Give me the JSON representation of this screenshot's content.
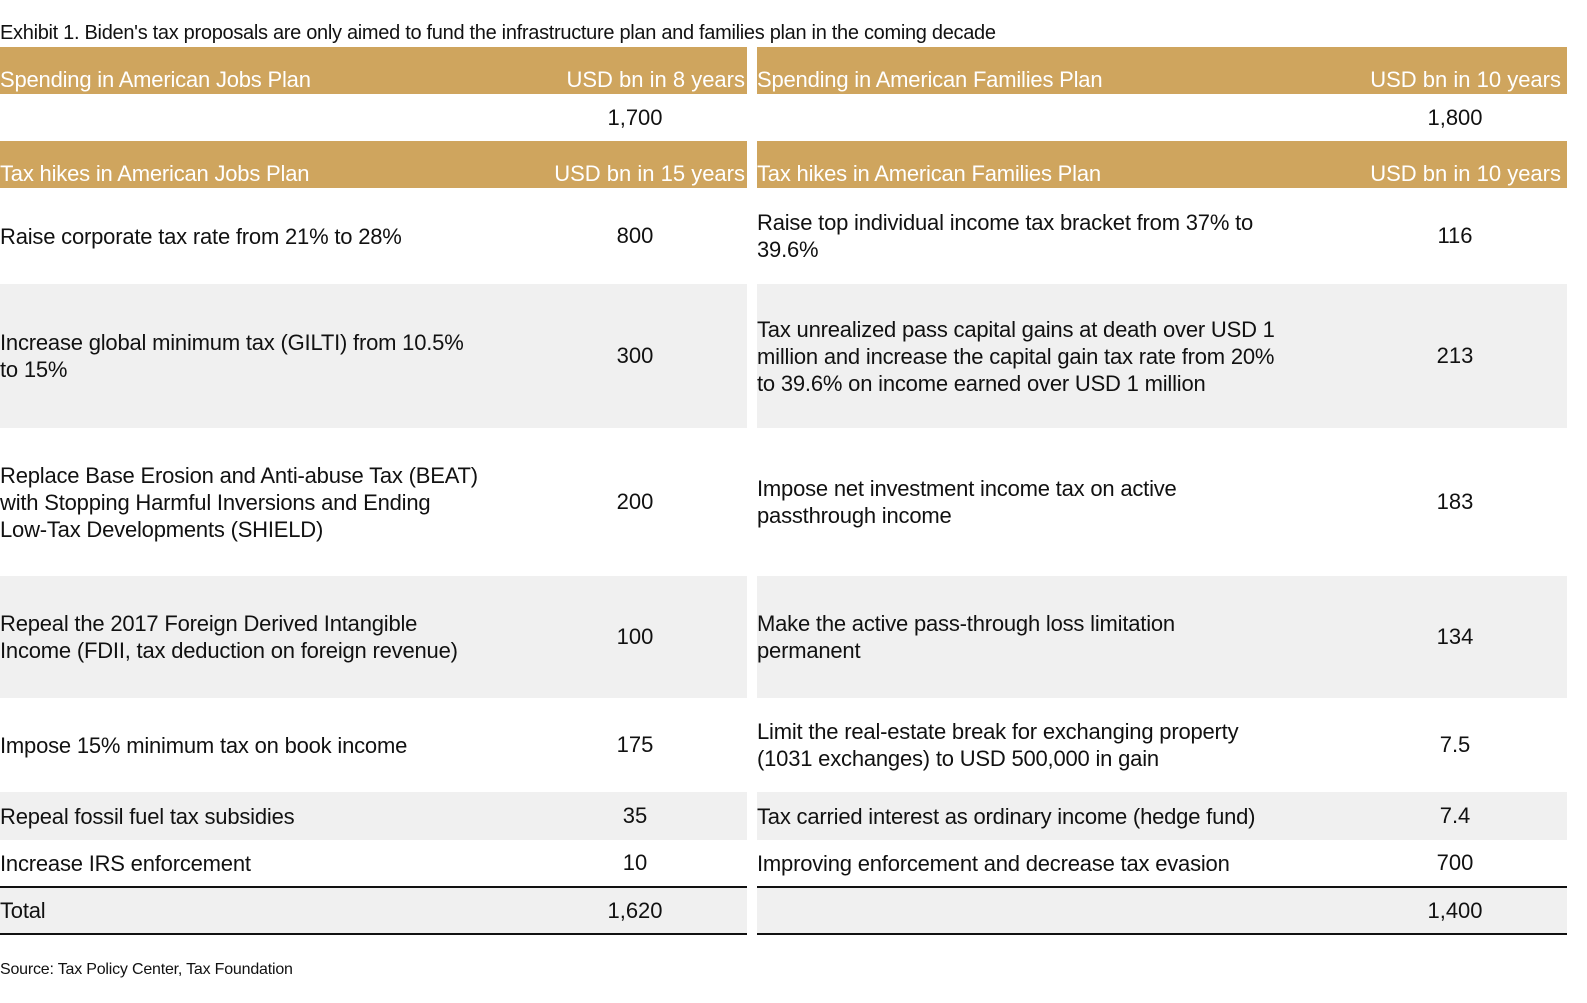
{
  "title": "Exhibit 1. Biden's tax proposals are only aimed to fund the infrastructure plan and families plan in the coming decade",
  "jobs": {
    "spending_header": "Spending in American Jobs Plan",
    "spending_unit": "USD bn in 8 years",
    "spending_value": "1,700",
    "tax_header": "Tax hikes in American Jobs Plan",
    "tax_unit": "USD bn in 15 years",
    "rows": [
      {
        "label": "Raise corporate tax rate from 21% to 28%",
        "value": "800"
      },
      {
        "label": "Increase global minimum tax (GILTI) from 10.5% to 15%",
        "value": "300"
      },
      {
        "label": "Replace Base Erosion and Anti-abuse Tax (BEAT) with Stopping Harmful Inversions and Ending Low-Tax Developments (SHIELD)",
        "value": "200"
      },
      {
        "label": "Repeal the 2017 Foreign Derived Intangible Income (FDII, tax deduction on foreign revenue)",
        "value": "100"
      },
      {
        "label": "Impose 15% minimum tax on book income",
        "value": "175"
      },
      {
        "label": "Repeal fossil fuel tax subsidies",
        "value": "35"
      },
      {
        "label": "Increase IRS enforcement",
        "value": "10"
      }
    ],
    "total_label": "Total",
    "total_value": "1,620"
  },
  "families": {
    "spending_header": "Spending in American Families Plan",
    "spending_unit": "USD bn in 10 years",
    "spending_value": "1,800",
    "tax_header": "Tax hikes in American Families Plan",
    "tax_unit": "USD bn in 10 years",
    "rows": [
      {
        "label": "Raise top individual income tax bracket from 37% to 39.6%",
        "value": "116"
      },
      {
        "label": "Tax unrealized pass capital gains at death over USD 1 million and increase the capital gain tax rate from 20% to 39.6% on income earned over USD 1 million",
        "value": "213"
      },
      {
        "label": "Impose net investment income tax on active passthrough income",
        "value": "183"
      },
      {
        "label": "Make the active pass-through loss limitation permanent",
        "value": "134"
      },
      {
        "label": "Limit the real-estate break for exchanging property (1031 exchanges) to USD 500,000 in gain",
        "value": "7.5"
      },
      {
        "label": "Tax carried interest as ordinary income (hedge fund)",
        "value": "7.4"
      },
      {
        "label": "Improving enforcement and decrease tax evasion",
        "value": "700"
      }
    ],
    "total_value": "1,400"
  },
  "source": "Source: Tax Policy Center, Tax Foundation",
  "colors": {
    "header_bg": "#CFA55E",
    "stripe_bg": "#F0F0F0"
  }
}
